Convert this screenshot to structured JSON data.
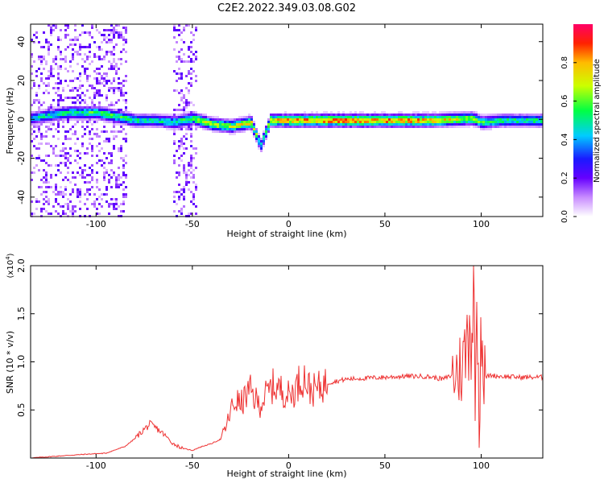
{
  "title": "C2E2.2022.349.03.08.G02",
  "chart_data": [
    {
      "type": "heatmap",
      "xlabel": "Height of straight line (km)",
      "ylabel": "Frequency (Hz)",
      "xlim": [
        -134,
        132
      ],
      "ylim": [
        -50,
        49
      ],
      "xticks": [
        -100,
        -50,
        0,
        50,
        100
      ],
      "yticks": [
        -40,
        -20,
        0,
        20,
        40
      ],
      "colorbar": {
        "label": "Normalized spectral amplitude",
        "range": [
          0.0,
          1.0
        ],
        "ticks": [
          0.0,
          0.2,
          0.4,
          0.6,
          0.8
        ],
        "tick_labels": [
          "0.0",
          "0.2",
          "0.4",
          "0.6",
          "0.8"
        ],
        "colormap": [
          "#ffffff",
          "#8a00ff",
          "#1a1aff",
          "#00b4ff",
          "#00ff66",
          "#c8ff00",
          "#ffcc00",
          "#ff3300",
          "#ff0066"
        ]
      },
      "ridge": [
        {
          "x": -128,
          "freq": 2,
          "amp": 0.5
        },
        {
          "x": -115,
          "freq": 4,
          "amp": 0.55
        },
        {
          "x": -100,
          "freq": 4,
          "amp": 0.6
        },
        {
          "x": -90,
          "freq": 2,
          "amp": 0.6
        },
        {
          "x": -80,
          "freq": 0,
          "amp": 0.55
        },
        {
          "x": -70,
          "freq": 0,
          "amp": 0.5
        },
        {
          "x": -60,
          "freq": -1,
          "amp": 0.55
        },
        {
          "x": -50,
          "freq": 1,
          "amp": 0.65
        },
        {
          "x": -40,
          "freq": -2,
          "amp": 0.7
        },
        {
          "x": -30,
          "freq": -3,
          "amp": 0.7
        },
        {
          "x": -20,
          "freq": -1,
          "amp": 0.8
        },
        {
          "x": -15,
          "freq": -13,
          "amp": 0.5
        },
        {
          "x": -10,
          "freq": 0,
          "amp": 0.8
        },
        {
          "x": 0,
          "freq": 0,
          "amp": 0.85
        },
        {
          "x": 20,
          "freq": 0,
          "amp": 0.9
        },
        {
          "x": 50,
          "freq": 0,
          "amp": 0.9
        },
        {
          "x": 75,
          "freq": 0,
          "amp": 0.85
        },
        {
          "x": 95,
          "freq": 1,
          "amp": 0.7
        },
        {
          "x": 100,
          "freq": -1,
          "amp": 0.6
        },
        {
          "x": 110,
          "freq": 0,
          "amp": 0.55
        },
        {
          "x": 131,
          "freq": 0,
          "amp": 0.55
        }
      ],
      "noise_bands": [
        [
          -134,
          -85
        ],
        [
          -60,
          -48
        ]
      ]
    },
    {
      "type": "line",
      "xlabel": "Height of straight line (km)",
      "ylabel": "SNR (10 * v/v)",
      "multiplier_label": "(x10",
      "multiplier_exp": "4",
      "multiplier_close": ")",
      "xlim": [
        -134,
        132
      ],
      "ylim": [
        0,
        2.0
      ],
      "xticks": [
        -100,
        -50,
        0,
        50,
        100
      ],
      "yticks": [
        0.5,
        1.0,
        1.5,
        2.0
      ],
      "ytick_labels": [
        "0.5",
        "1.0",
        "1.5",
        "2.0"
      ],
      "color": "#ee3333",
      "series": [
        {
          "x": [
            -134,
            -120,
            -105,
            -95,
            -85,
            -80,
            -75,
            -72,
            -68,
            -65,
            -60,
            -55,
            -50,
            -45,
            -40,
            -35,
            -32,
            -30,
            -27,
            -25,
            -22,
            -20,
            -17,
            -15,
            -12,
            -10,
            -8,
            -5,
            -3,
            0,
            3,
            5,
            8,
            10,
            12,
            15,
            20,
            25,
            30,
            40,
            50,
            60,
            70,
            75,
            80,
            85,
            88,
            90,
            92,
            93,
            94,
            95,
            96,
            97,
            98,
            99,
            100,
            101,
            102,
            105,
            110,
            120,
            132
          ],
          "y": [
            0.0,
            0.02,
            0.04,
            0.05,
            0.12,
            0.2,
            0.3,
            0.35,
            0.3,
            0.25,
            0.15,
            0.1,
            0.08,
            0.12,
            0.15,
            0.2,
            0.35,
            0.5,
            0.6,
            0.55,
            0.65,
            0.7,
            0.6,
            0.55,
            0.65,
            0.7,
            0.75,
            0.72,
            0.7,
            0.65,
            0.7,
            0.78,
            0.85,
            0.75,
            0.7,
            0.72,
            0.78,
            0.8,
            0.82,
            0.83,
            0.84,
            0.85,
            0.85,
            0.84,
            0.82,
            0.86,
            0.9,
            0.95,
            1.1,
            1.3,
            1.5,
            1.2,
            1.8,
            0.5,
            1.9,
            0.1,
            1.7,
            0.9,
            0.84,
            0.86,
            0.85,
            0.84,
            0.84
          ]
        }
      ]
    }
  ]
}
